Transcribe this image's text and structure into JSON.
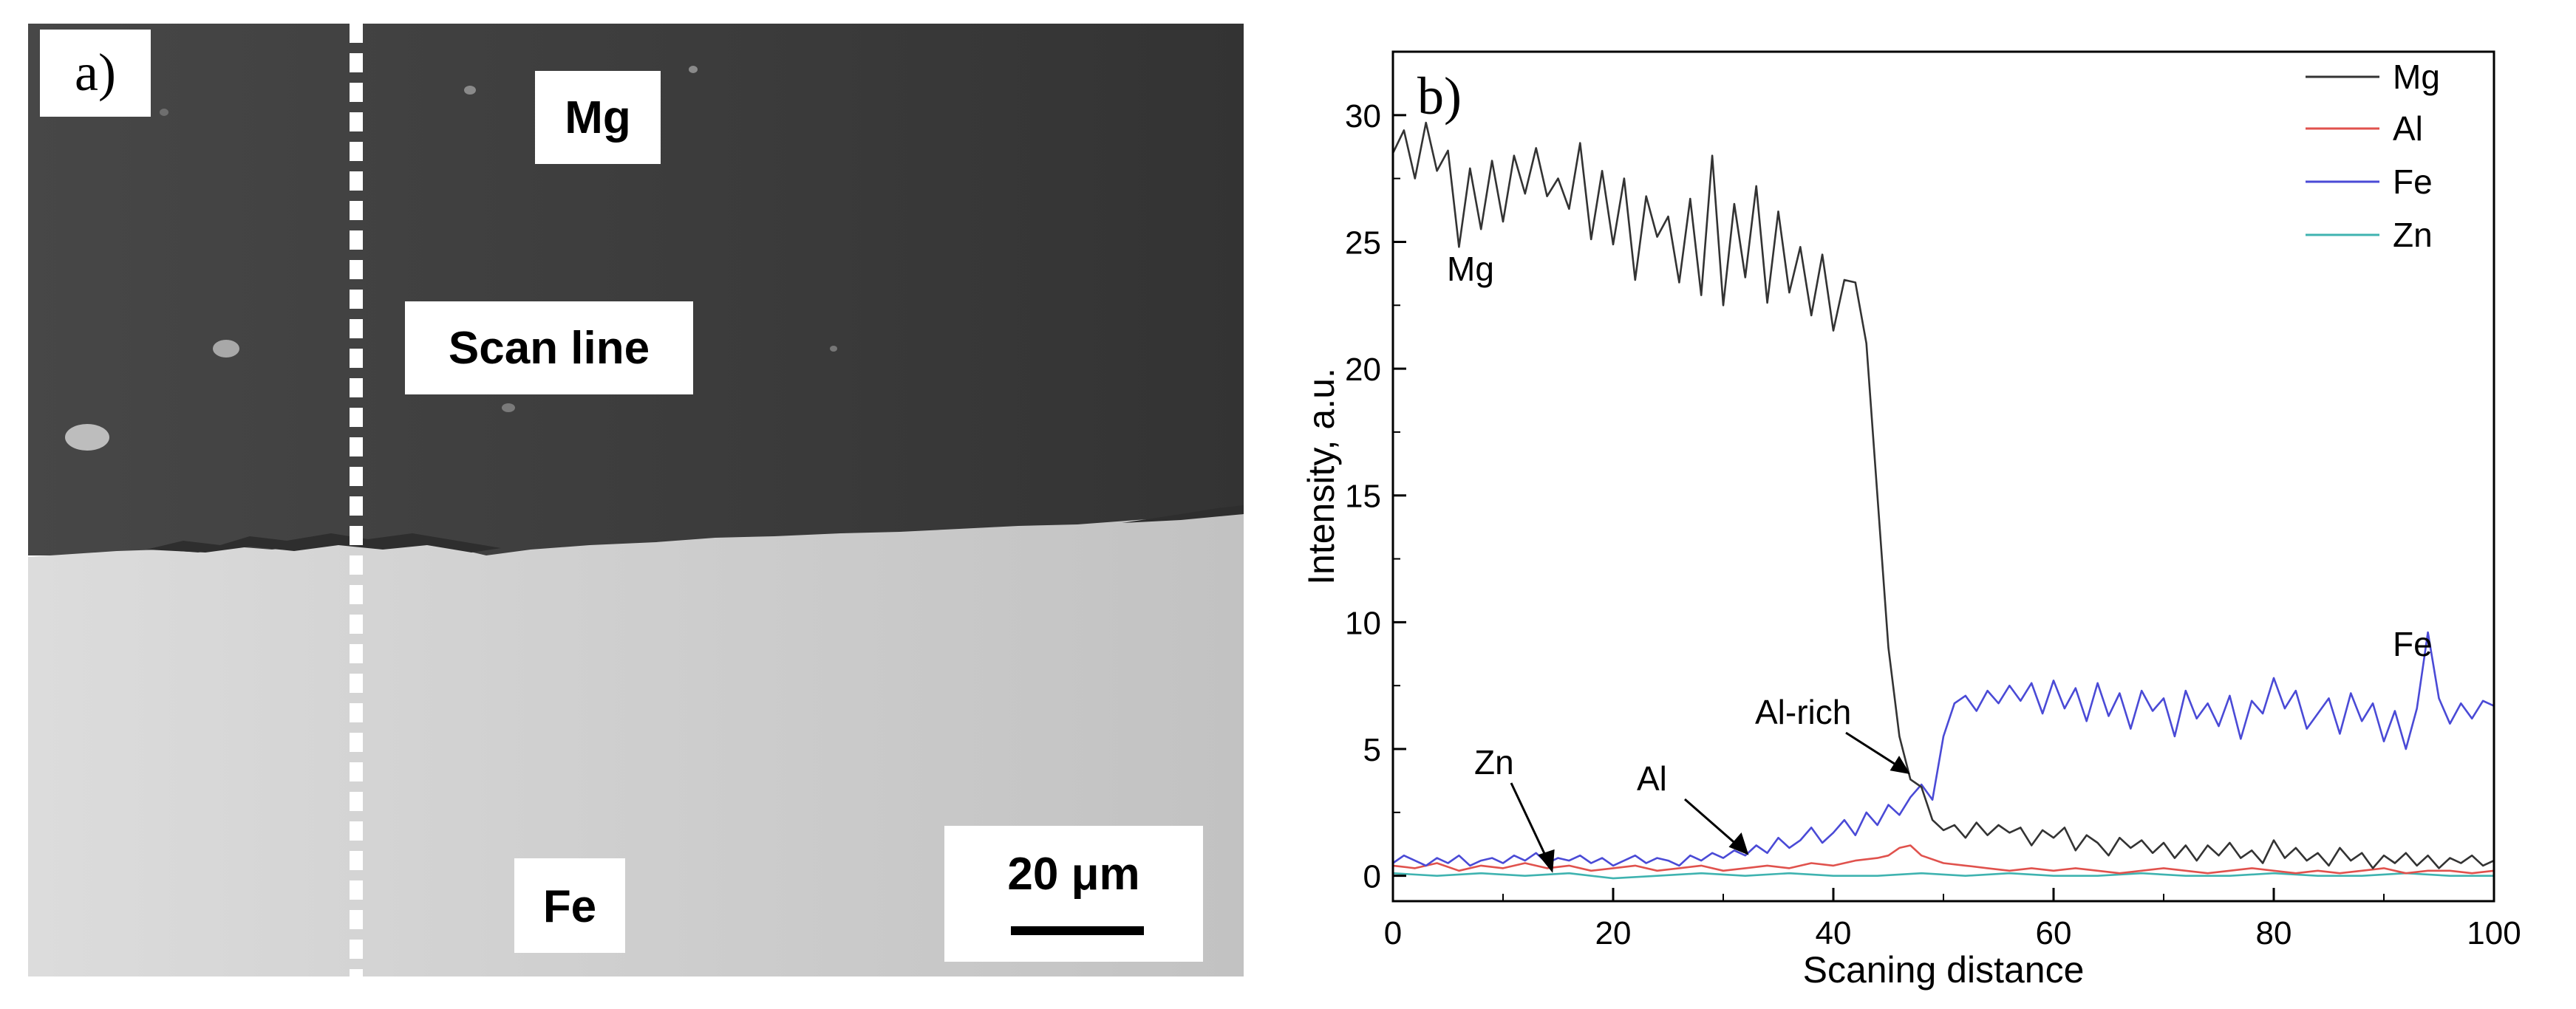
{
  "panel_a": {
    "label": "a)",
    "regions": {
      "top": "Mg",
      "bottom": "Fe"
    },
    "scan_line_label": "Scan line",
    "scale_bar_label": "20 μm",
    "colors": {
      "mg_region": "#3e3e3e",
      "fe_region": "#cfcfcf",
      "scan_line": "#ffffff"
    }
  },
  "panel_b": {
    "label": "b)",
    "annotations": {
      "mg": "Mg",
      "fe": "Fe",
      "zn": "Zn",
      "al": "Al",
      "al_rich": "Al-rich"
    }
  },
  "chart_data": {
    "type": "line",
    "xlabel": "Scaning distance",
    "ylabel": "Intensity, a.u.",
    "xlim": [
      0,
      100
    ],
    "ylim": [
      -1,
      32.5
    ],
    "xticks": [
      0,
      20,
      40,
      60,
      80,
      100
    ],
    "yticks": [
      0,
      5,
      10,
      15,
      20,
      25,
      30
    ],
    "grid": false,
    "legend_position": "top-right",
    "series": [
      {
        "name": "Mg",
        "color": "#333333",
        "x": [
          0,
          1,
          2,
          3,
          4,
          5,
          6,
          7,
          8,
          9,
          10,
          11,
          12,
          13,
          14,
          15,
          16,
          17,
          18,
          19,
          20,
          21,
          22,
          23,
          24,
          25,
          26,
          27,
          28,
          29,
          30,
          31,
          32,
          33,
          34,
          35,
          36,
          37,
          38,
          39,
          40,
          41,
          42,
          43,
          44,
          45,
          46,
          47,
          48,
          49,
          50,
          51,
          52,
          53,
          54,
          55,
          56,
          57,
          58,
          59,
          60,
          61,
          62,
          63,
          64,
          65,
          66,
          67,
          68,
          69,
          70,
          71,
          72,
          73,
          74,
          75,
          76,
          77,
          78,
          79,
          80,
          81,
          82,
          83,
          84,
          85,
          86,
          87,
          88,
          89,
          90,
          91,
          92,
          93,
          94,
          95,
          96,
          97,
          98,
          99,
          100
        ],
        "values": [
          28.5,
          29.4,
          27.5,
          29.7,
          27.8,
          28.6,
          24.8,
          27.9,
          25.5,
          28.2,
          25.8,
          28.4,
          26.9,
          28.7,
          26.8,
          27.5,
          26.3,
          28.9,
          25.1,
          27.8,
          24.9,
          27.5,
          23.5,
          26.8,
          25.2,
          26.0,
          23.4,
          26.7,
          22.9,
          28.4,
          22.5,
          26.5,
          23.6,
          27.2,
          22.6,
          26.2,
          23.0,
          24.8,
          22.1,
          24.5,
          21.5,
          23.5,
          23.4,
          21.0,
          15.0,
          9.0,
          5.5,
          3.8,
          3.5,
          2.2,
          1.8,
          2.0,
          1.5,
          2.1,
          1.6,
          2.0,
          1.7,
          1.9,
          1.2,
          1.8,
          1.5,
          1.9,
          1.0,
          1.6,
          1.3,
          0.8,
          1.5,
          1.1,
          1.4,
          0.9,
          1.3,
          0.7,
          1.2,
          0.6,
          1.2,
          0.8,
          1.3,
          0.7,
          1.0,
          0.5,
          1.4,
          0.7,
          1.1,
          0.6,
          0.9,
          0.4,
          1.1,
          0.6,
          0.9,
          0.3,
          0.8,
          0.5,
          0.9,
          0.4,
          0.8,
          0.3,
          0.7,
          0.5,
          0.8,
          0.4,
          0.6
        ]
      },
      {
        "name": "Al",
        "color": "#e0524d",
        "x": [
          0,
          2,
          4,
          6,
          8,
          10,
          12,
          14,
          16,
          18,
          20,
          22,
          24,
          26,
          28,
          30,
          32,
          34,
          36,
          38,
          40,
          42,
          44,
          45,
          46,
          47,
          48,
          50,
          52,
          54,
          56,
          58,
          60,
          62,
          64,
          66,
          68,
          70,
          72,
          74,
          76,
          78,
          80,
          82,
          84,
          86,
          88,
          90,
          92,
          94,
          96,
          98,
          100
        ],
        "values": [
          0.4,
          0.3,
          0.5,
          0.2,
          0.4,
          0.3,
          0.5,
          0.3,
          0.4,
          0.2,
          0.3,
          0.4,
          0.2,
          0.3,
          0.4,
          0.2,
          0.3,
          0.4,
          0.3,
          0.5,
          0.4,
          0.6,
          0.7,
          0.8,
          1.1,
          1.2,
          0.8,
          0.5,
          0.4,
          0.3,
          0.2,
          0.3,
          0.2,
          0.3,
          0.2,
          0.1,
          0.2,
          0.3,
          0.2,
          0.1,
          0.2,
          0.3,
          0.2,
          0.1,
          0.2,
          0.1,
          0.2,
          0.3,
          0.1,
          0.2,
          0.2,
          0.1,
          0.2
        ]
      },
      {
        "name": "Fe",
        "color": "#4a4ad6",
        "x": [
          0,
          1,
          2,
          3,
          4,
          5,
          6,
          7,
          8,
          9,
          10,
          11,
          12,
          13,
          14,
          15,
          16,
          17,
          18,
          19,
          20,
          21,
          22,
          23,
          24,
          25,
          26,
          27,
          28,
          29,
          30,
          31,
          32,
          33,
          34,
          35,
          36,
          37,
          38,
          39,
          40,
          41,
          42,
          43,
          44,
          45,
          46,
          47,
          48,
          49,
          50,
          51,
          52,
          53,
          54,
          55,
          56,
          57,
          58,
          59,
          60,
          61,
          62,
          63,
          64,
          65,
          66,
          67,
          68,
          69,
          70,
          71,
          72,
          73,
          74,
          75,
          76,
          77,
          78,
          79,
          80,
          81,
          82,
          83,
          84,
          85,
          86,
          87,
          88,
          89,
          90,
          91,
          92,
          93,
          94,
          95,
          96,
          97,
          98,
          99,
          100
        ],
        "values": [
          0.5,
          0.8,
          0.6,
          0.4,
          0.7,
          0.5,
          0.8,
          0.4,
          0.6,
          0.7,
          0.5,
          0.8,
          0.6,
          0.9,
          0.5,
          0.7,
          0.6,
          0.8,
          0.5,
          0.7,
          0.4,
          0.6,
          0.8,
          0.5,
          0.7,
          0.6,
          0.4,
          0.8,
          0.6,
          0.9,
          0.7,
          1.0,
          0.8,
          1.2,
          0.9,
          1.5,
          1.1,
          1.4,
          1.9,
          1.3,
          1.7,
          2.2,
          1.6,
          2.5,
          2.0,
          2.8,
          2.4,
          3.1,
          3.6,
          3.0,
          5.5,
          6.8,
          7.1,
          6.5,
          7.3,
          6.8,
          7.5,
          6.9,
          7.6,
          6.4,
          7.7,
          6.6,
          7.4,
          6.1,
          7.6,
          6.3,
          7.2,
          5.8,
          7.3,
          6.5,
          7.0,
          5.5,
          7.3,
          6.2,
          6.8,
          5.9,
          7.1,
          5.4,
          6.9,
          6.4,
          7.8,
          6.6,
          7.3,
          5.8,
          6.4,
          7.0,
          5.6,
          7.2,
          6.1,
          6.8,
          5.3,
          6.5,
          5.0,
          6.6,
          9.6,
          7.0,
          6.0,
          6.8,
          6.2,
          6.9,
          6.7
        ]
      },
      {
        "name": "Zn",
        "color": "#3fb3b0",
        "x": [
          0,
          4,
          8,
          12,
          16,
          20,
          24,
          28,
          32,
          36,
          40,
          44,
          48,
          52,
          56,
          60,
          64,
          68,
          72,
          76,
          80,
          84,
          88,
          92,
          96,
          100
        ],
        "values": [
          0.1,
          0.0,
          0.1,
          0.0,
          0.1,
          -0.1,
          0.0,
          0.1,
          0.0,
          0.1,
          0.0,
          0.0,
          0.1,
          0.0,
          0.1,
          0.0,
          0.0,
          0.1,
          0.0,
          0.0,
          0.1,
          0.0,
          0.0,
          0.1,
          0.0,
          0.0
        ]
      }
    ]
  }
}
